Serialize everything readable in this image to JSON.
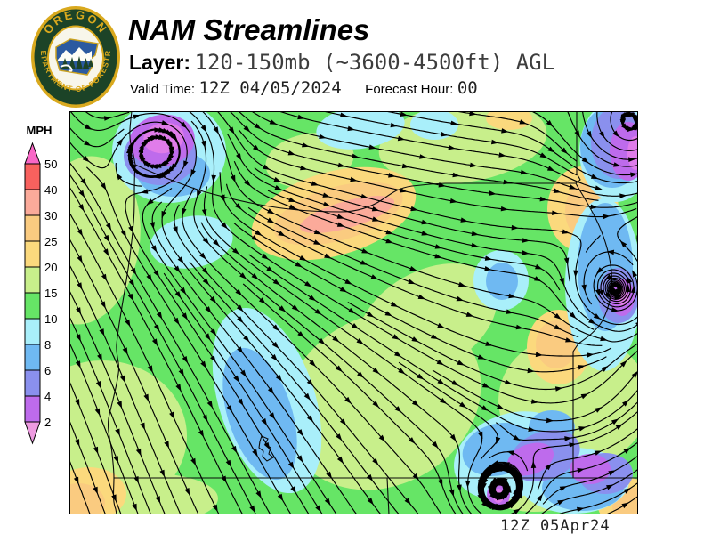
{
  "header": {
    "title": "NAM Streamlines",
    "layer_label": "Layer:",
    "layer_value": "120-150mb (~3600-4500ft) AGL",
    "valid_time_label": "Valid Time:",
    "valid_time_value": "12Z 04/05/2024",
    "forecast_hour_label": "Forecast Hour:",
    "forecast_hour_value": "00"
  },
  "logo": {
    "arc_text_top": "OREGON",
    "arc_text_bottom": "DEPARTMENT OF FORESTRY",
    "gold": "#D9A91E",
    "dark_green": "#1C4327",
    "state_blue": "#2B5AA0"
  },
  "legend": {
    "title": "MPH",
    "ticks": [
      "50",
      "40",
      "30",
      "25",
      "20",
      "15",
      "10",
      "8",
      "6",
      "4",
      "2"
    ],
    "above_max_color": "#F967C7",
    "below_min_color": "#EE9BE1",
    "segments": [
      {
        "range": "40-50",
        "color": "#F8615E"
      },
      {
        "range": "30-40",
        "color": "#FBAA9A"
      },
      {
        "range": "25-30",
        "color": "#FACB80"
      },
      {
        "range": "20-25",
        "color": "#FBD97D"
      },
      {
        "range": "15-20",
        "color": "#C8EF8B"
      },
      {
        "range": "10-15",
        "color": "#66E566"
      },
      {
        "range": "8-10",
        "color": "#A9EFFA"
      },
      {
        "range": "6-8",
        "color": "#6FB9F2"
      },
      {
        "range": "4-6",
        "color": "#8A90EE"
      },
      {
        "range": "2-4",
        "color": "#BE6BEC"
      }
    ]
  },
  "map": {
    "timestamp": "12Z 05Apr24",
    "border_color": "#000000",
    "streamline_color": "#000000",
    "speed_colors": {
      "10-15": "#66E566",
      "15-20": "#C8EF8B",
      "20-25": "#FBD97D",
      "25-30": "#FACB80",
      "30-40": "#FBAA9A",
      "8-10": "#A9EFFA",
      "6-8": "#6FB9F2",
      "4-6": "#8A90EE",
      "2-4": "#BE6BEC",
      "<2": "#E07CEA"
    }
  }
}
